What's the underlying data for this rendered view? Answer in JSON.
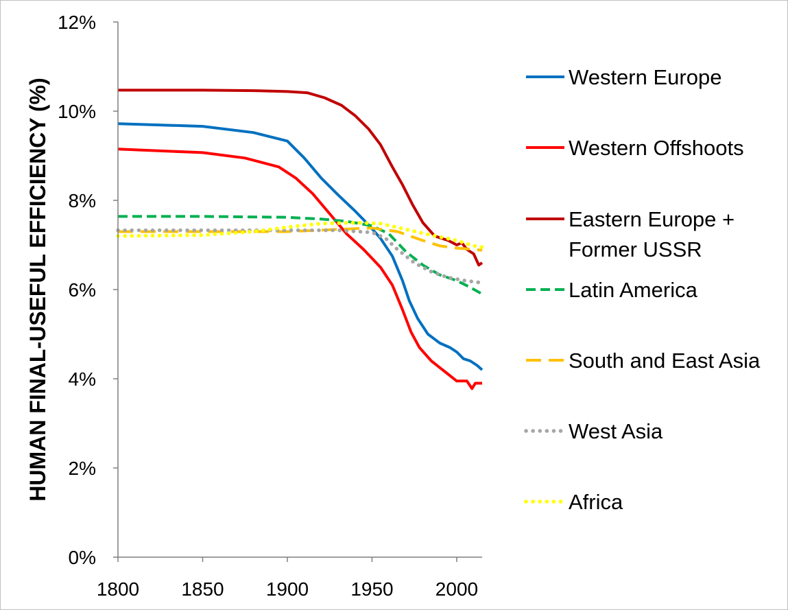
{
  "chart_data": {
    "type": "line",
    "title": "",
    "xlabel": "",
    "ylabel": "HUMAN FINAL-USEFUL EFFICIENCY (%)",
    "xlim": [
      1800,
      2015
    ],
    "ylim": [
      0,
      12
    ],
    "x_ticks": [
      "1800",
      "1850",
      "1900",
      "1950",
      "2000"
    ],
    "y_ticks": [
      "0%",
      "2%",
      "4%",
      "6%",
      "8%",
      "10%",
      "12%"
    ],
    "grid": false,
    "legend_position": "right",
    "series": [
      {
        "name": "Western Europe",
        "color": "#0070C0",
        "style": "solid",
        "points": [
          [
            1800,
            9.72
          ],
          [
            1850,
            9.66
          ],
          [
            1880,
            9.52
          ],
          [
            1900,
            9.33
          ],
          [
            1910,
            8.95
          ],
          [
            1920,
            8.5
          ],
          [
            1930,
            8.12
          ],
          [
            1940,
            7.76
          ],
          [
            1948,
            7.45
          ],
          [
            1955,
            7.15
          ],
          [
            1962,
            6.75
          ],
          [
            1968,
            6.2
          ],
          [
            1972,
            5.75
          ],
          [
            1977,
            5.35
          ],
          [
            1983,
            5.0
          ],
          [
            1990,
            4.8
          ],
          [
            1996,
            4.7
          ],
          [
            2000,
            4.6
          ],
          [
            2004,
            4.45
          ],
          [
            2008,
            4.4
          ],
          [
            2012,
            4.3
          ],
          [
            2015,
            4.2
          ]
        ]
      },
      {
        "name": "Western Offshoots",
        "color": "#FF0000",
        "style": "solid",
        "points": [
          [
            1800,
            9.15
          ],
          [
            1850,
            9.07
          ],
          [
            1875,
            8.95
          ],
          [
            1895,
            8.75
          ],
          [
            1905,
            8.5
          ],
          [
            1915,
            8.15
          ],
          [
            1925,
            7.7
          ],
          [
            1935,
            7.25
          ],
          [
            1945,
            6.9
          ],
          [
            1955,
            6.5
          ],
          [
            1962,
            6.1
          ],
          [
            1968,
            5.55
          ],
          [
            1973,
            5.05
          ],
          [
            1978,
            4.7
          ],
          [
            1985,
            4.4
          ],
          [
            1990,
            4.25
          ],
          [
            1995,
            4.1
          ],
          [
            2000,
            3.95
          ],
          [
            2006,
            3.95
          ],
          [
            2009,
            3.78
          ],
          [
            2011,
            3.9
          ],
          [
            2015,
            3.9
          ]
        ]
      },
      {
        "name": "Eastern Europe + Former USSR",
        "color": "#C00000",
        "style": "solid",
        "points": [
          [
            1800,
            10.47
          ],
          [
            1850,
            10.47
          ],
          [
            1880,
            10.46
          ],
          [
            1900,
            10.44
          ],
          [
            1912,
            10.41
          ],
          [
            1922,
            10.3
          ],
          [
            1932,
            10.13
          ],
          [
            1940,
            9.9
          ],
          [
            1948,
            9.6
          ],
          [
            1955,
            9.25
          ],
          [
            1962,
            8.75
          ],
          [
            1968,
            8.35
          ],
          [
            1974,
            7.9
          ],
          [
            1980,
            7.5
          ],
          [
            1987,
            7.2
          ],
          [
            1995,
            7.1
          ],
          [
            2000,
            7.0
          ],
          [
            2003,
            7.05
          ],
          [
            2006,
            6.9
          ],
          [
            2010,
            6.8
          ],
          [
            2013,
            6.55
          ],
          [
            2015,
            6.6
          ]
        ]
      },
      {
        "name": "Latin America",
        "color": "#00B050",
        "style": "dashed",
        "points": [
          [
            1800,
            7.64
          ],
          [
            1850,
            7.64
          ],
          [
            1900,
            7.62
          ],
          [
            1920,
            7.58
          ],
          [
            1935,
            7.53
          ],
          [
            1950,
            7.43
          ],
          [
            1960,
            7.25
          ],
          [
            1970,
            6.85
          ],
          [
            1980,
            6.55
          ],
          [
            1990,
            6.33
          ],
          [
            2000,
            6.2
          ],
          [
            2008,
            6.05
          ],
          [
            2015,
            5.9
          ]
        ]
      },
      {
        "name": "South and East Asia",
        "color": "#FFC000",
        "style": "long-dash",
        "points": [
          [
            1800,
            7.3
          ],
          [
            1850,
            7.3
          ],
          [
            1900,
            7.3
          ],
          [
            1930,
            7.35
          ],
          [
            1950,
            7.38
          ],
          [
            1965,
            7.3
          ],
          [
            1980,
            7.1
          ],
          [
            1990,
            6.98
          ],
          [
            2000,
            6.93
          ],
          [
            2010,
            6.9
          ],
          [
            2015,
            6.88
          ]
        ]
      },
      {
        "name": "West Asia",
        "color": "#A6A6A6",
        "style": "dotted",
        "points": [
          [
            1800,
            7.33
          ],
          [
            1850,
            7.33
          ],
          [
            1900,
            7.33
          ],
          [
            1930,
            7.33
          ],
          [
            1950,
            7.28
          ],
          [
            1958,
            7.15
          ],
          [
            1965,
            6.9
          ],
          [
            1975,
            6.6
          ],
          [
            1985,
            6.4
          ],
          [
            1995,
            6.27
          ],
          [
            2005,
            6.2
          ],
          [
            2015,
            6.15
          ]
        ]
      },
      {
        "name": "Africa",
        "color": "#FFFF00",
        "style": "dotted",
        "points": [
          [
            1800,
            7.2
          ],
          [
            1850,
            7.22
          ],
          [
            1880,
            7.3
          ],
          [
            1900,
            7.4
          ],
          [
            1920,
            7.48
          ],
          [
            1940,
            7.5
          ],
          [
            1955,
            7.48
          ],
          [
            1970,
            7.35
          ],
          [
            1985,
            7.22
          ],
          [
            2000,
            7.1
          ],
          [
            2010,
            6.98
          ],
          [
            2015,
            6.95
          ]
        ]
      }
    ]
  },
  "legend": {
    "entries": [
      {
        "lines": [
          "Western Europe"
        ]
      },
      {
        "lines": [
          "Western Offshoots"
        ]
      },
      {
        "lines": [
          "Eastern Europe +",
          "Former USSR"
        ]
      },
      {
        "lines": [
          "Latin America"
        ]
      },
      {
        "lines": [
          "South and East Asia"
        ]
      },
      {
        "lines": [
          "West Asia"
        ]
      },
      {
        "lines": [
          "Africa"
        ]
      }
    ]
  }
}
